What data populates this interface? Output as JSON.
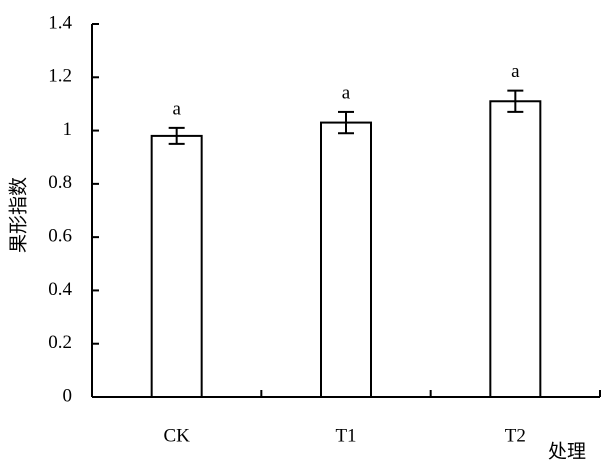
{
  "chart_data": {
    "type": "bar",
    "y_label": "果形指数",
    "x_label": "处理",
    "categories": [
      "CK",
      "T1",
      "T2"
    ],
    "values": [
      0.98,
      1.03,
      1.11
    ],
    "errors": [
      0.03,
      0.04,
      0.04
    ],
    "annotations": [
      "a",
      "a",
      "a"
    ],
    "color": "#ffffff",
    "ylim": [
      0,
      1.4
    ],
    "yticks": [
      0,
      0.2,
      0.4,
      0.6,
      0.8,
      1,
      1.2,
      1.4
    ],
    "grid": false
  }
}
